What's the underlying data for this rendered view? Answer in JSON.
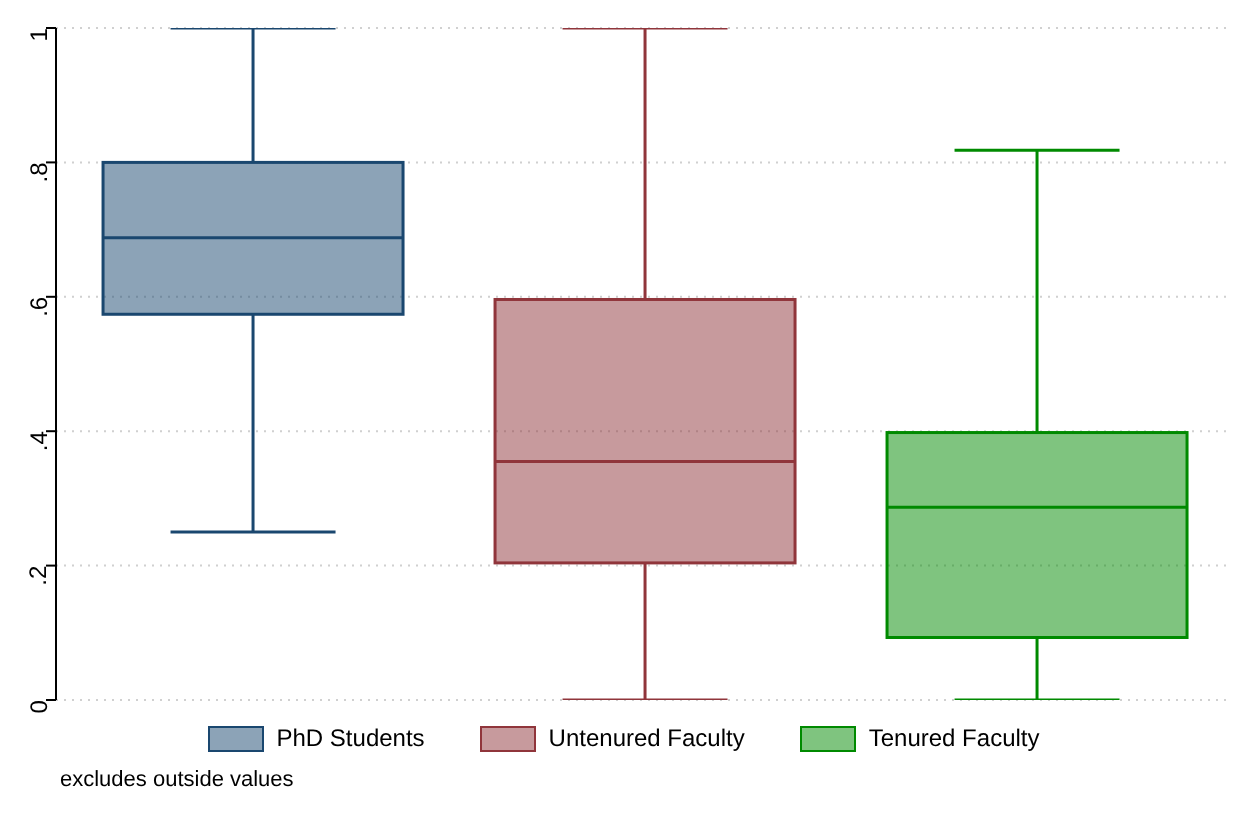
{
  "chart_data": {
    "type": "box",
    "categories": [
      null
    ],
    "series": [
      {
        "name": "PhD Students",
        "color": "#1a476f",
        "boxes": [
          {
            "low": 0.25,
            "q1": 0.574,
            "median": 0.688,
            "q3": 0.8,
            "high": 1.0
          }
        ]
      },
      {
        "name": "Untenured Faculty",
        "color": "#90353b",
        "boxes": [
          {
            "low": 0,
            "q1": 0.204,
            "median": 0.355,
            "q3": 0.596,
            "high": 1.0
          }
        ]
      },
      {
        "name": "Tenured Faculty",
        "color": "#008a00",
        "boxes": [
          {
            "low": 0,
            "q1": 0.093,
            "median": 0.287,
            "q3": 0.398,
            "high": 0.818
          }
        ]
      }
    ],
    "ylim": [
      0,
      1
    ],
    "yticks": [
      0,
      {
        "value": 0.2,
        "label": ".2"
      },
      {
        "value": 0.4,
        "label": ".4"
      },
      {
        "value": 0.6,
        "label": ".6"
      },
      {
        "value": 0.8,
        "label": ".8"
      },
      1
    ],
    "grid": "y",
    "legend": "bottom",
    "annotations": [
      "excludes outside values"
    ]
  }
}
